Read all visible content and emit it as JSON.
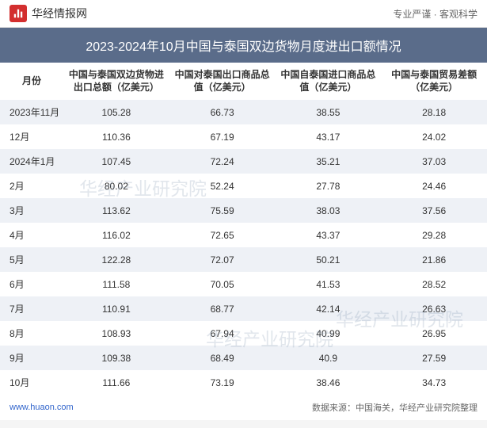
{
  "header": {
    "logo_text": "华经情报网",
    "tagline": "专业严谨 · 客观科学"
  },
  "title": "2023-2024年10月中国与泰国双边货物月度进出口额情况",
  "table": {
    "columns": [
      "月份",
      "中国与泰国双边货物进出口总额（亿美元）",
      "中国对泰国出口商品总值（亿美元）",
      "中国自泰国进口商品总值（亿美元）",
      "中国与泰国贸易差额（亿美元）"
    ],
    "rows": [
      [
        "2023年11月",
        "105.28",
        "66.73",
        "38.55",
        "28.18"
      ],
      [
        "12月",
        "110.36",
        "67.19",
        "43.17",
        "24.02"
      ],
      [
        "2024年1月",
        "107.45",
        "72.24",
        "35.21",
        "37.03"
      ],
      [
        "2月",
        "80.02",
        "52.24",
        "27.78",
        "24.46"
      ],
      [
        "3月",
        "113.62",
        "75.59",
        "38.03",
        "37.56"
      ],
      [
        "4月",
        "116.02",
        "72.65",
        "43.37",
        "29.28"
      ],
      [
        "5月",
        "122.28",
        "72.07",
        "50.21",
        "21.86"
      ],
      [
        "6月",
        "111.58",
        "70.05",
        "41.53",
        "28.52"
      ],
      [
        "7月",
        "110.91",
        "68.77",
        "42.14",
        "26.63"
      ],
      [
        "8月",
        "108.93",
        "67.94",
        "40.99",
        "26.95"
      ],
      [
        "9月",
        "109.38",
        "68.49",
        "40.9",
        "27.59"
      ],
      [
        "10月",
        "111.66",
        "73.19",
        "38.46",
        "34.73"
      ]
    ]
  },
  "footer": {
    "url": "www.huaon.com",
    "source": "数据来源：中国海关，华经产业研究院整理"
  },
  "watermark_text": "华经产业研究院",
  "colors": {
    "title_bg": "#5a6c8a",
    "row_odd_bg": "#eef1f6",
    "row_even_bg": "#ffffff",
    "logo_bg": "#d32f2f",
    "link_color": "#3366cc",
    "text_color": "#333333",
    "muted_text": "#666666"
  },
  "typography": {
    "title_fontsize": 16,
    "header_fontsize": 12,
    "cell_fontsize": 12,
    "footer_fontsize": 11,
    "font_family": "Microsoft YaHei"
  }
}
